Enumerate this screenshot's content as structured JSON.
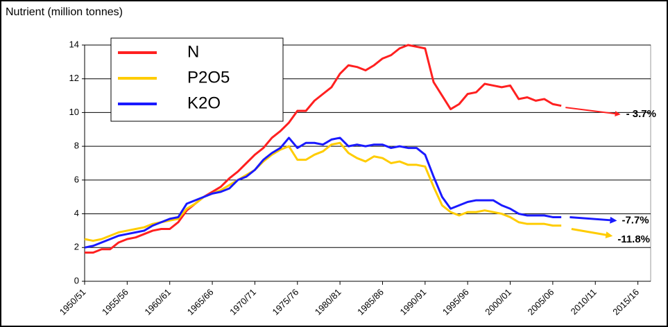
{
  "chart_data": {
    "type": "line",
    "y_label": "Nutrient (million tonnes)",
    "x": [
      1950,
      1951,
      1952,
      1953,
      1954,
      1955,
      1956,
      1957,
      1958,
      1959,
      1960,
      1961,
      1962,
      1963,
      1964,
      1965,
      1966,
      1967,
      1968,
      1969,
      1970,
      1971,
      1972,
      1973,
      1974,
      1975,
      1976,
      1977,
      1978,
      1979,
      1980,
      1981,
      1982,
      1983,
      1984,
      1985,
      1986,
      1987,
      1988,
      1989,
      1990,
      1991,
      1992,
      1993,
      1994,
      1995,
      1996,
      1997,
      1998,
      1999,
      2000,
      2001,
      2002,
      2003,
      2004,
      2005,
      2006
    ],
    "series": [
      {
        "name": "N",
        "color": "#ff2020",
        "values": [
          1.7,
          1.7,
          1.9,
          1.9,
          2.3,
          2.5,
          2.6,
          2.8,
          3.0,
          3.1,
          3.1,
          3.5,
          4.2,
          4.6,
          5.0,
          5.3,
          5.6,
          6.1,
          6.5,
          7.0,
          7.5,
          7.9,
          8.5,
          8.9,
          9.4,
          10.1,
          10.1,
          10.7,
          11.1,
          11.5,
          12.3,
          12.8,
          12.7,
          12.5,
          12.8,
          13.2,
          13.4,
          13.8,
          14.0,
          13.9,
          13.8,
          11.8,
          11.0,
          10.2,
          10.5,
          11.1,
          11.2,
          11.7,
          11.6,
          11.5,
          11.6,
          10.8,
          10.9,
          10.7,
          10.8,
          10.5,
          10.4
        ]
      },
      {
        "name": "P2O5",
        "color": "#ffcc00",
        "values": [
          2.5,
          2.4,
          2.5,
          2.7,
          2.9,
          3.0,
          3.1,
          3.2,
          3.4,
          3.5,
          3.6,
          3.7,
          4.3,
          4.6,
          5.0,
          5.2,
          5.4,
          5.7,
          6.0,
          6.3,
          6.6,
          7.1,
          7.5,
          7.8,
          8.0,
          7.2,
          7.2,
          7.5,
          7.7,
          8.1,
          8.2,
          7.6,
          7.3,
          7.1,
          7.4,
          7.3,
          7.0,
          7.1,
          6.9,
          6.9,
          6.8,
          5.6,
          4.5,
          4.1,
          3.9,
          4.1,
          4.1,
          4.2,
          4.1,
          4.0,
          3.8,
          3.5,
          3.4,
          3.4,
          3.4,
          3.3,
          3.3
        ]
      },
      {
        "name": "K2O",
        "color": "#1a1aff",
        "values": [
          2.0,
          2.1,
          2.3,
          2.5,
          2.7,
          2.8,
          2.9,
          3.0,
          3.3,
          3.5,
          3.7,
          3.8,
          4.6,
          4.8,
          5.0,
          5.2,
          5.3,
          5.5,
          6.0,
          6.2,
          6.6,
          7.2,
          7.6,
          7.9,
          8.5,
          7.9,
          8.2,
          8.2,
          8.1,
          8.4,
          8.5,
          8.0,
          8.1,
          8.0,
          8.1,
          8.1,
          7.9,
          8.0,
          7.9,
          7.9,
          7.5,
          6.2,
          5.0,
          4.3,
          4.5,
          4.7,
          4.8,
          4.8,
          4.8,
          4.5,
          4.3,
          4.0,
          3.9,
          3.9,
          3.9,
          3.8,
          3.8
        ]
      }
    ],
    "projections": [
      {
        "color": "#ff2020",
        "x": [
          2006.5,
          2012.8
        ],
        "values": [
          10.3,
          9.9
        ],
        "label": "- 3.7%"
      },
      {
        "color": "#1a1aff",
        "x": [
          2007,
          2012.3
        ],
        "values": [
          3.8,
          3.6
        ],
        "label": "-7.7%"
      },
      {
        "color": "#ffcc00",
        "x": [
          2007.2,
          2011.8
        ],
        "values": [
          3.1,
          2.7
        ],
        "label": "-11.8%"
      }
    ],
    "xlim": [
      1950,
      2016.5
    ],
    "xticks": [
      {
        "value": 1950,
        "label": "1950/51"
      },
      {
        "value": 1955,
        "label": "1955/56"
      },
      {
        "value": 1960,
        "label": "1960/61"
      },
      {
        "value": 1965,
        "label": "1965/66"
      },
      {
        "value": 1970,
        "label": "1970/71"
      },
      {
        "value": 1975,
        "label": "1975/76"
      },
      {
        "value": 1980,
        "label": "1980/81"
      },
      {
        "value": 1985,
        "label": "1985/86"
      },
      {
        "value": 1990,
        "label": "1990/91"
      },
      {
        "value": 1995,
        "label": "1995/96"
      },
      {
        "value": 2000,
        "label": "2000/01"
      },
      {
        "value": 2005,
        "label": "2005/06"
      },
      {
        "value": 2010,
        "label": "2010/11"
      },
      {
        "value": 2015,
        "label": "2015/16"
      }
    ],
    "ylim": [
      0,
      14
    ],
    "yticks": [
      0,
      2,
      4,
      6,
      8,
      10,
      12,
      14
    ],
    "grid": true,
    "legend": "upper left"
  }
}
